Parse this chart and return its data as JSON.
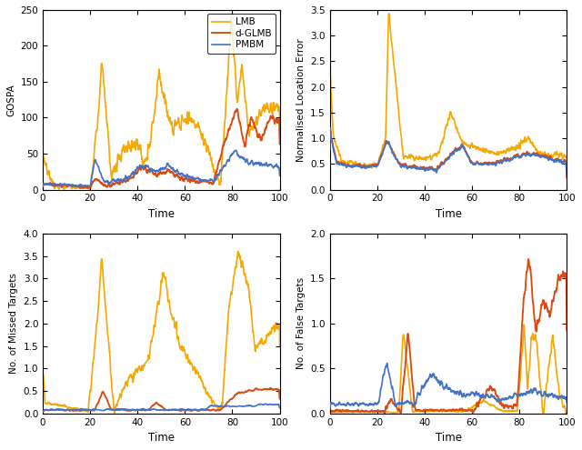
{
  "colors": {
    "PMBM": "#4472c4",
    "d-GLMB": "#d84c14",
    "LMB": "#f5a800"
  },
  "subplots": [
    {
      "ylabel": "GOSPA",
      "xlabel": "Time",
      "ylim": [
        0,
        250
      ],
      "yticks": [
        0,
        50,
        100,
        150,
        200,
        250
      ],
      "xlim": [
        0,
        100
      ],
      "xticks": [
        0,
        20,
        40,
        60,
        80,
        100
      ],
      "show_legend": true
    },
    {
      "ylabel": "Normalised Location Error",
      "xlabel": "Time",
      "ylim": [
        0,
        3.5
      ],
      "yticks": [
        0,
        0.5,
        1.0,
        1.5,
        2.0,
        2.5,
        3.0,
        3.5
      ],
      "xlim": [
        0,
        100
      ],
      "xticks": [
        0,
        20,
        40,
        60,
        80,
        100
      ],
      "show_legend": false
    },
    {
      "ylabel": "No. of Missed Targets",
      "xlabel": "Time",
      "ylim": [
        0,
        4
      ],
      "yticks": [
        0,
        0.5,
        1.0,
        1.5,
        2.0,
        2.5,
        3.0,
        3.5,
        4.0
      ],
      "xlim": [
        0,
        100
      ],
      "xticks": [
        0,
        20,
        40,
        60,
        80,
        100
      ],
      "show_legend": false
    },
    {
      "ylabel": "No. of False Targets",
      "xlabel": "Time",
      "ylim": [
        0,
        2
      ],
      "yticks": [
        0,
        0.5,
        1.0,
        1.5,
        2.0
      ],
      "xlim": [
        0,
        100
      ],
      "xticks": [
        0,
        20,
        40,
        60,
        80,
        100
      ],
      "show_legend": false
    }
  ]
}
